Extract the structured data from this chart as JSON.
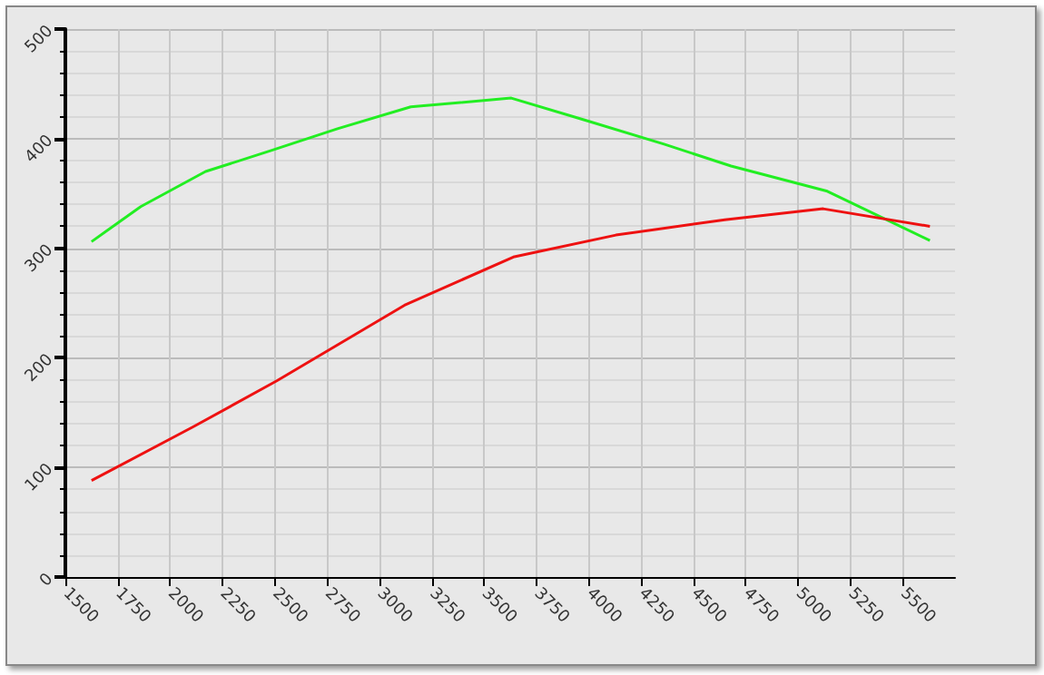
{
  "chart_data": {
    "type": "line",
    "xlim": [
      1500,
      5750
    ],
    "xticks": [
      1500,
      1750,
      2000,
      2250,
      2500,
      2750,
      3000,
      3250,
      3500,
      3750,
      4000,
      4250,
      4500,
      4750,
      5000,
      5250,
      5500
    ],
    "ylim": [
      0,
      500
    ],
    "yticks": [
      0,
      100,
      200,
      300,
      400,
      500
    ],
    "grid": true,
    "marker": "none",
    "line_style": "solid",
    "series": [
      {
        "color": "#22ee22",
        "x": [
          1625,
          1860,
          2170,
          2480,
          2800,
          3150,
          3630,
          3980,
          4360,
          4680,
          5140,
          5630
        ],
        "values": [
          306,
          338,
          370,
          389,
          409,
          429,
          437,
          417,
          395,
          375,
          352,
          307
        ]
      },
      {
        "color": "#ee1111",
        "x": [
          1625,
          2110,
          2510,
          3120,
          3640,
          4130,
          4650,
          5120,
          5630
        ],
        "values": [
          88,
          137,
          179,
          248,
          292,
          312,
          326,
          336,
          320
        ]
      }
    ]
  }
}
